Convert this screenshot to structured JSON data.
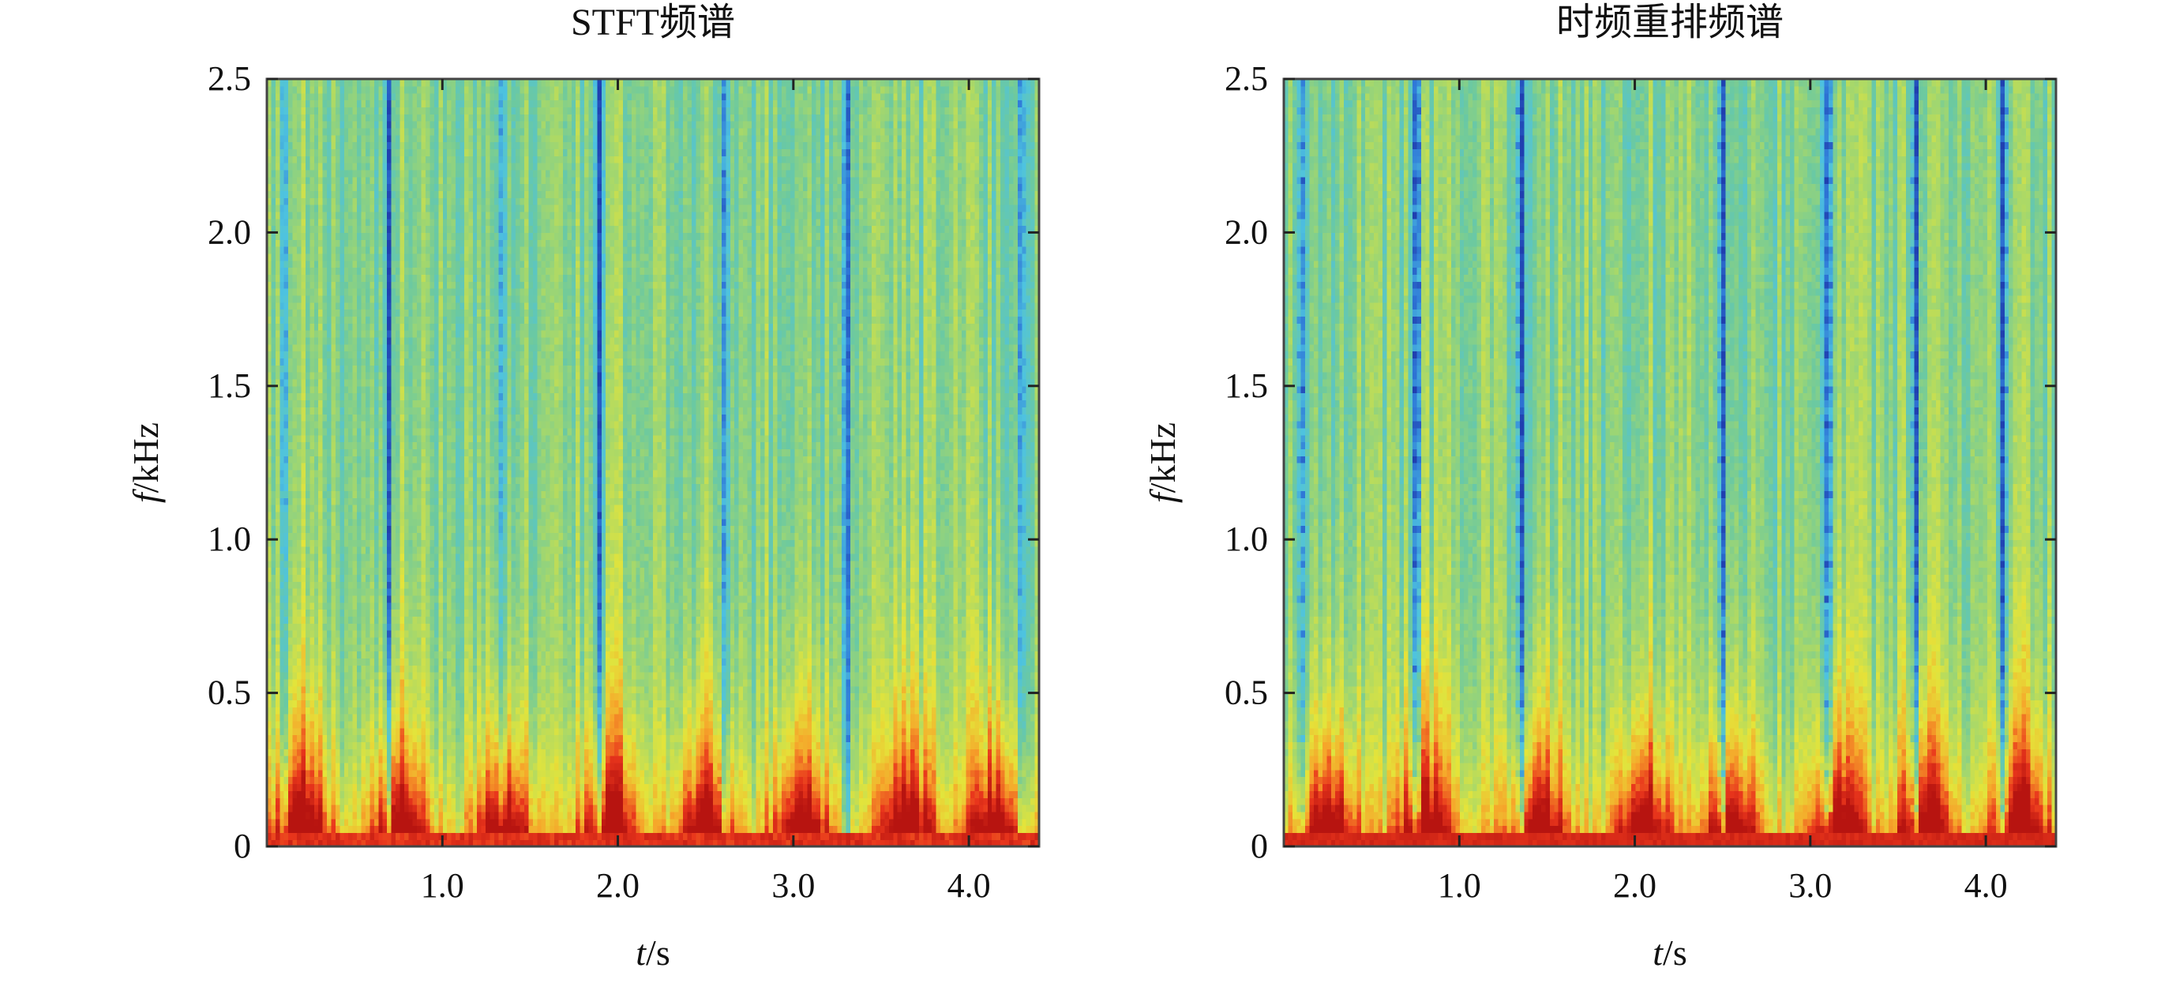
{
  "chart_data": [
    {
      "type": "heatmap",
      "title": "STFT频谱",
      "xlabel_italic": "t",
      "xlabel_unit": "/s",
      "ylabel_italic": "f",
      "ylabel_unit": "/kHz",
      "xlim": [
        0,
        4.4
      ],
      "ylim": [
        0,
        2.5
      ],
      "xticks": [
        1.0,
        2.0,
        3.0,
        4.0
      ],
      "xtick_labels": [
        "1.0",
        "2.0",
        "3.0",
        "4.0"
      ],
      "yticks": [
        0,
        0.5,
        1.0,
        1.5,
        2.0,
        2.5
      ],
      "ytick_labels": [
        "0",
        "0.5",
        "1.0",
        "1.5",
        "2.0",
        "2.5"
      ],
      "colormap": "jet",
      "colormap_stops": [
        "#1f3fb0",
        "#2f79d8",
        "#4ec3e0",
        "#6cc9a0",
        "#a7d86a",
        "#e4e43a",
        "#f6a52a",
        "#e9361c",
        "#b71410"
      ],
      "energy_bursts_t": [
        0.2,
        0.75,
        1.35,
        1.95,
        2.5,
        3.05,
        3.65,
        4.15
      ],
      "low_energy_columns_t": [
        0.1,
        0.7,
        1.33,
        1.9,
        2.6,
        3.3,
        4.3
      ]
    },
    {
      "type": "heatmap",
      "title": "时频重排频谱",
      "xlabel_italic": "t",
      "xlabel_unit": "/s",
      "ylabel_italic": "f",
      "ylabel_unit": "/kHz",
      "xlim": [
        0,
        4.4
      ],
      "ylim": [
        0,
        2.5
      ],
      "xticks": [
        1.0,
        2.0,
        3.0,
        4.0
      ],
      "xtick_labels": [
        "1.0",
        "2.0",
        "3.0",
        "4.0"
      ],
      "yticks": [
        0,
        0.5,
        1.0,
        1.5,
        2.0,
        2.5
      ],
      "ytick_labels": [
        "0",
        "0.5",
        "1.0",
        "1.5",
        "2.0",
        "2.5"
      ],
      "colormap": "jet",
      "colormap_stops": [
        "#1f3fb0",
        "#2f79d8",
        "#4ec3e0",
        "#6cc9a0",
        "#a7d86a",
        "#e4e43a",
        "#f6a52a",
        "#e9361c",
        "#b71410"
      ],
      "energy_bursts_t": [
        0.25,
        0.8,
        1.45,
        2.05,
        2.55,
        3.15,
        3.65,
        4.2
      ],
      "low_energy_columns_t": [
        0.1,
        0.75,
        1.35,
        2.5,
        3.1,
        3.6,
        4.1
      ]
    }
  ]
}
